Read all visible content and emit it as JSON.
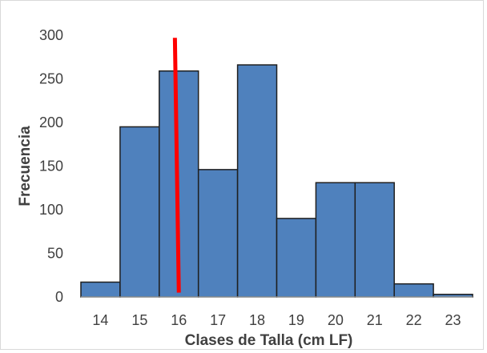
{
  "chart_data": {
    "type": "bar",
    "title": "",
    "xlabel": "Clases de Talla (cm LF)",
    "ylabel": "Frecuencia",
    "categories": [
      "14",
      "15",
      "16",
      "17",
      "18",
      "19",
      "20",
      "21",
      "22",
      "23"
    ],
    "values": [
      17,
      195,
      259,
      146,
      266,
      90,
      131,
      131,
      15,
      3
    ],
    "ylim": [
      0,
      300
    ],
    "yticks": [
      "0",
      "50",
      "100",
      "150",
      "200",
      "250",
      "300"
    ],
    "grid": false,
    "legend": "none",
    "bar_color": "#4f81bd",
    "bar_edge_color": "#1f1f1f",
    "reference_line": {
      "color": "#ff0000",
      "x_top": 15.9,
      "y_top": 297,
      "x_bottom": 16.0,
      "y_bottom": 5
    }
  }
}
